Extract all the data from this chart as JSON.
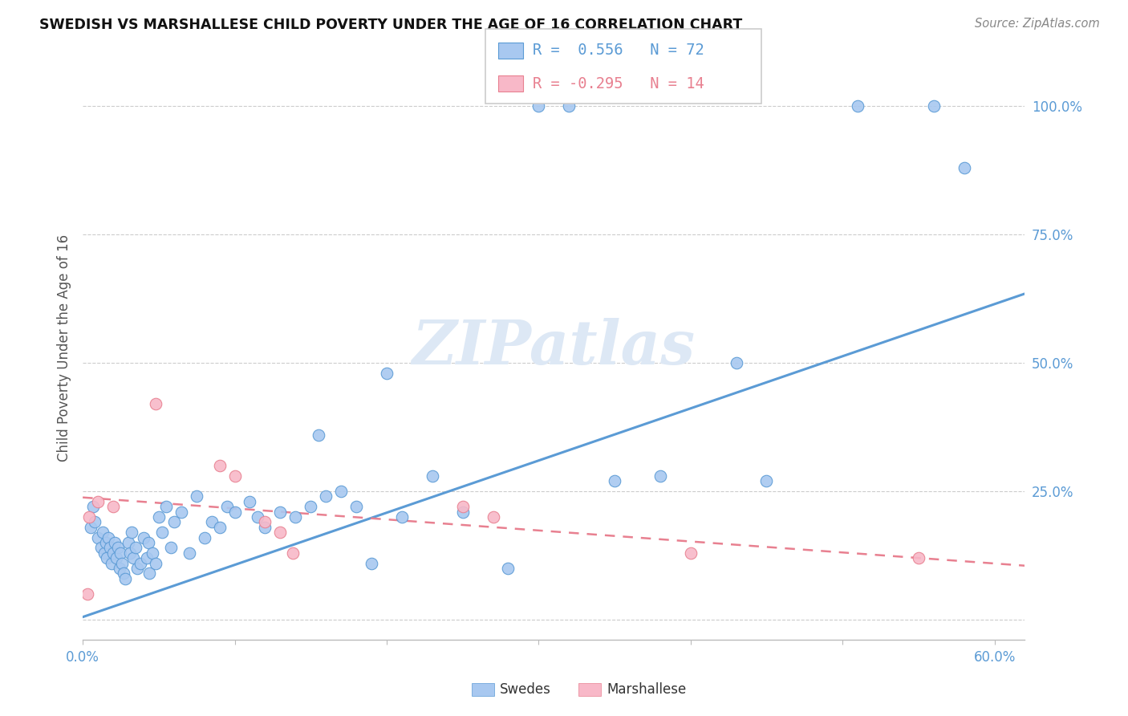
{
  "title": "SWEDISH VS MARSHALLESE CHILD POVERTY UNDER THE AGE OF 16 CORRELATION CHART",
  "source": "Source: ZipAtlas.com",
  "ylabel": "Child Poverty Under the Age of 16",
  "xlim": [
    0.0,
    0.62
  ],
  "ylim": [
    -0.04,
    1.1
  ],
  "yticks": [
    0.0,
    0.25,
    0.5,
    0.75,
    1.0
  ],
  "xticks": [
    0.0,
    0.1,
    0.2,
    0.3,
    0.4,
    0.5,
    0.6
  ],
  "xtick_labels": [
    "0.0%",
    "",
    "",
    "",
    "",
    "",
    "60.0%"
  ],
  "ytick_labels": [
    "",
    "25.0%",
    "50.0%",
    "75.0%",
    "100.0%"
  ],
  "swedish_color": "#a8c8f0",
  "marshallese_color": "#f8b8c8",
  "swedish_line_color": "#5b9bd5",
  "marshallese_line_color": "#e88090",
  "watermark": "ZIPatlas",
  "legend_r_swedish": "R =  0.556",
  "legend_n_swedish": "N = 72",
  "legend_r_marshallese": "R = -0.295",
  "legend_n_marshallese": "N = 14",
  "swedish_x": [
    0.005,
    0.007,
    0.008,
    0.01,
    0.012,
    0.013,
    0.014,
    0.015,
    0.016,
    0.017,
    0.018,
    0.019,
    0.02,
    0.021,
    0.022,
    0.023,
    0.024,
    0.025,
    0.026,
    0.027,
    0.028,
    0.03,
    0.031,
    0.032,
    0.033,
    0.035,
    0.036,
    0.038,
    0.04,
    0.042,
    0.043,
    0.044,
    0.046,
    0.048,
    0.05,
    0.052,
    0.055,
    0.058,
    0.06,
    0.065,
    0.07,
    0.075,
    0.08,
    0.085,
    0.09,
    0.095,
    0.1,
    0.11,
    0.115,
    0.12,
    0.13,
    0.14,
    0.15,
    0.155,
    0.16,
    0.17,
    0.18,
    0.19,
    0.2,
    0.21,
    0.23,
    0.25,
    0.28,
    0.3,
    0.32,
    0.35,
    0.38,
    0.43,
    0.45,
    0.51,
    0.56,
    0.58
  ],
  "swedish_y": [
    0.18,
    0.22,
    0.19,
    0.16,
    0.14,
    0.17,
    0.13,
    0.15,
    0.12,
    0.16,
    0.14,
    0.11,
    0.13,
    0.15,
    0.12,
    0.14,
    0.1,
    0.13,
    0.11,
    0.09,
    0.08,
    0.15,
    0.13,
    0.17,
    0.12,
    0.14,
    0.1,
    0.11,
    0.16,
    0.12,
    0.15,
    0.09,
    0.13,
    0.11,
    0.2,
    0.17,
    0.22,
    0.14,
    0.19,
    0.21,
    0.13,
    0.24,
    0.16,
    0.19,
    0.18,
    0.22,
    0.21,
    0.23,
    0.2,
    0.18,
    0.21,
    0.2,
    0.22,
    0.36,
    0.24,
    0.25,
    0.22,
    0.11,
    0.48,
    0.2,
    0.28,
    0.21,
    0.1,
    1.0,
    1.0,
    0.27,
    0.28,
    0.5,
    0.27,
    1.0,
    1.0,
    0.88
  ],
  "marshallese_x": [
    0.003,
    0.004,
    0.01,
    0.02,
    0.048,
    0.09,
    0.1,
    0.12,
    0.13,
    0.138,
    0.25,
    0.27,
    0.4,
    0.55
  ],
  "marshallese_y": [
    0.05,
    0.2,
    0.23,
    0.22,
    0.42,
    0.3,
    0.28,
    0.19,
    0.17,
    0.13,
    0.22,
    0.2,
    0.13,
    0.12
  ],
  "swedish_trend_x": [
    0.0,
    0.62
  ],
  "swedish_trend_y": [
    0.005,
    0.635
  ],
  "marshallese_trend_x": [
    0.0,
    0.62
  ],
  "marshallese_trend_y": [
    0.238,
    0.105
  ]
}
